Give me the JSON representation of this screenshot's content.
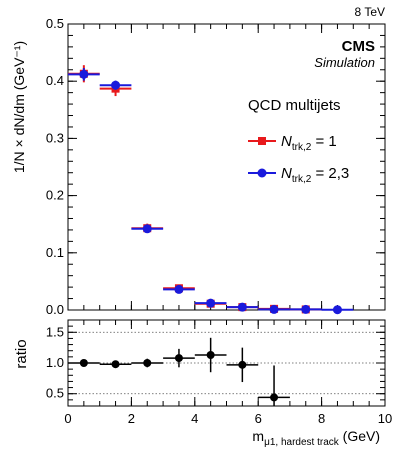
{
  "figure": {
    "energy_label": "8 TeV",
    "experiment": "CMS",
    "qualifier": "Simulation"
  },
  "chart_data": [
    {
      "type": "scatter",
      "panel": "main",
      "ylabel": "1/N × dN/dm (GeV⁻¹)",
      "xlim": [
        0,
        10
      ],
      "ylim": [
        0,
        0.5
      ],
      "x_ticks": [
        0,
        2,
        4,
        6,
        8,
        10
      ],
      "y_ticks": [
        0,
        0.1,
        0.2,
        0.3,
        0.4,
        0.5
      ],
      "y_tick_labels": [
        "0.0",
        "0.1",
        "0.2",
        "0.3",
        "0.4",
        "0.5"
      ],
      "legend_title": "QCD multijets",
      "legend_position": "top-right",
      "bins": [
        [
          0,
          1
        ],
        [
          1,
          2
        ],
        [
          2,
          3
        ],
        [
          3,
          4
        ],
        [
          4,
          5
        ],
        [
          5,
          6
        ],
        [
          6,
          7
        ],
        [
          7,
          8
        ],
        [
          8,
          9
        ]
      ],
      "series": [
        {
          "label_main": "N",
          "label_sub": "trk,2",
          "label_tail": " = 1",
          "color": "#e8191c",
          "marker": "square",
          "x": [
            0.5,
            1.5,
            2.5,
            3.5,
            4.5,
            5.5,
            6.5,
            7.5
          ],
          "y": [
            0.413,
            0.387,
            0.143,
            0.038,
            0.011,
            0.005,
            0.002,
            0.001
          ],
          "yerr": [
            0.015,
            0.013,
            0.008,
            0.003,
            0.002,
            0.001,
            0.001,
            0.0005
          ]
        },
        {
          "label_main": "N",
          "label_sub": "trk,2",
          "label_tail": " = 2,3",
          "color": "#1a1adc",
          "marker": "circle",
          "x": [
            0.5,
            1.5,
            2.5,
            3.5,
            4.5,
            5.5,
            6.5,
            7.5,
            8.5
          ],
          "y": [
            0.412,
            0.393,
            0.142,
            0.036,
            0.012,
            0.005,
            0.001,
            0.001,
            0.0005
          ],
          "yerr": [
            0.011,
            0.008,
            0.006,
            0.003,
            0.002,
            0.001,
            0.0008,
            0.0005,
            0.0004
          ]
        }
      ]
    },
    {
      "type": "scatter",
      "panel": "ratio",
      "ylabel": "ratio",
      "xlabel_main": "m",
      "xlabel_sub": "μ1, hardest track",
      "xlabel_unit": " (GeV)",
      "xlim": [
        0,
        10
      ],
      "ylim": [
        0.3,
        1.7
      ],
      "x_ticks": [
        0,
        2,
        4,
        6,
        8,
        10
      ],
      "x_tick_labels": [
        "0",
        "2",
        "4",
        "6",
        "8",
        "10"
      ],
      "y_ticks": [
        0.5,
        1.0,
        1.5
      ],
      "y_tick_labels": [
        "0.5",
        "1.0",
        "1.5"
      ],
      "reference_lines": [
        0.5,
        1.0,
        1.5
      ],
      "color": "#000000",
      "points": {
        "x": [
          0.5,
          1.5,
          2.5,
          3.5,
          4.5,
          5.5,
          6.5
        ],
        "y": [
          1.0,
          0.98,
          1.0,
          1.08,
          1.13,
          0.97,
          0.44
        ],
        "yerr": [
          0.04,
          0.04,
          0.07,
          0.15,
          0.28,
          0.28,
          0.52
        ]
      }
    }
  ]
}
